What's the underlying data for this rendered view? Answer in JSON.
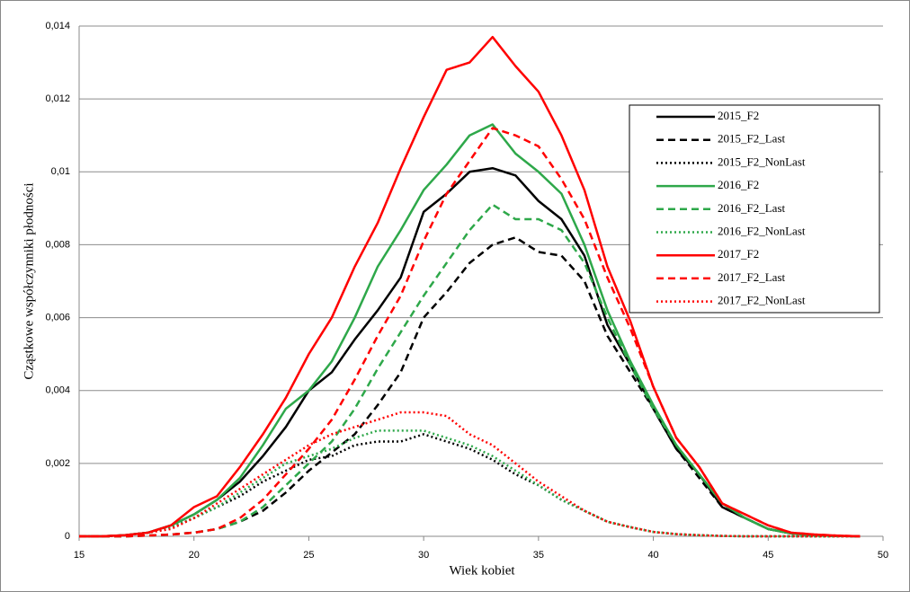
{
  "chart_data": {
    "type": "line",
    "xlabel": "Wiek kobiet",
    "ylabel": "Cząstkowe współczynniki  płodności",
    "x": [
      15,
      16,
      17,
      18,
      19,
      20,
      21,
      22,
      23,
      24,
      25,
      26,
      27,
      28,
      29,
      30,
      31,
      32,
      33,
      34,
      35,
      36,
      37,
      38,
      39,
      40,
      41,
      42,
      43,
      44,
      45,
      46,
      47,
      48,
      49
    ],
    "xlim": [
      15,
      50
    ],
    "xticks": [
      15,
      20,
      25,
      30,
      35,
      40,
      45,
      50
    ],
    "ylim": [
      0,
      0.014
    ],
    "yticks": [
      0,
      {
        "value": 0.002,
        "label": "0,002"
      },
      {
        "value": 0.004,
        "label": "0,004"
      },
      {
        "value": 0.006,
        "label": "0,006"
      },
      {
        "value": 0.008,
        "label": "0,008"
      },
      {
        "value": 0.01,
        "label": "0,01"
      },
      {
        "value": 0.012,
        "label": "0,012"
      },
      {
        "value": 0.014,
        "label": "0,014"
      }
    ],
    "grid": true,
    "legend": "upper right",
    "series": [
      {
        "name": "2015_F2",
        "color": "#000000",
        "linestyle": "solid",
        "values": [
          0,
          0,
          3e-05,
          0.0001,
          0.0003,
          0.0006,
          0.001,
          0.0015,
          0.0022,
          0.003,
          0.004,
          0.0045,
          0.0054,
          0.0062,
          0.0071,
          0.0089,
          0.0094,
          0.01,
          0.0101,
          0.0099,
          0.0092,
          0.0087,
          0.0077,
          0.0058,
          0.0047,
          0.0035,
          0.0024,
          0.0017,
          0.0008,
          0.0005,
          0.0002,
          8e-05,
          3e-05,
          1e-05,
          0
        ]
      },
      {
        "name": "2015_F2_Last",
        "color": "#000000",
        "linestyle": "dashed",
        "values": [
          0,
          0,
          0,
          2e-05,
          5e-05,
          0.0001,
          0.0002,
          0.0004,
          0.0007,
          0.0012,
          0.0018,
          0.0023,
          0.0028,
          0.0036,
          0.0045,
          0.006,
          0.0067,
          0.0075,
          0.008,
          0.0082,
          0.0078,
          0.0077,
          0.007,
          0.0055,
          0.0045,
          0.0035,
          0.0024,
          0.0016,
          0.0008,
          0.0005,
          0.0002,
          8e-05,
          3e-05,
          1e-05,
          0
        ]
      },
      {
        "name": "2015_F2_NonLast",
        "color": "#000000",
        "linestyle": "dotted",
        "values": [
          0,
          0,
          3e-05,
          0.0001,
          0.00025,
          0.0005,
          0.0008,
          0.0011,
          0.0015,
          0.0018,
          0.0021,
          0.0022,
          0.0025,
          0.0026,
          0.0026,
          0.0028,
          0.0026,
          0.0024,
          0.0021,
          0.0017,
          0.0014,
          0.001,
          0.0007,
          0.0004,
          0.00025,
          0.00012,
          6e-05,
          3e-05,
          1e-05,
          0,
          0,
          0,
          0,
          0,
          0
        ]
      },
      {
        "name": "2016_F2",
        "color": "#2ea84a",
        "linestyle": "solid",
        "values": [
          0,
          0,
          3e-05,
          0.0001,
          0.0003,
          0.0006,
          0.001,
          0.0016,
          0.0025,
          0.0035,
          0.004,
          0.0048,
          0.006,
          0.0074,
          0.0084,
          0.0095,
          0.0102,
          0.011,
          0.0113,
          0.0105,
          0.01,
          0.0094,
          0.008,
          0.0062,
          0.0048,
          0.0036,
          0.0025,
          0.0017,
          0.0009,
          0.0005,
          0.0002,
          8e-05,
          3e-05,
          1e-05,
          0
        ]
      },
      {
        "name": "2016_F2_Last",
        "color": "#2ea84a",
        "linestyle": "dashed",
        "values": [
          0,
          0,
          0,
          2e-05,
          5e-05,
          0.0001,
          0.0002,
          0.0004,
          0.0008,
          0.0014,
          0.002,
          0.0026,
          0.0035,
          0.0046,
          0.0056,
          0.0066,
          0.0075,
          0.0084,
          0.0091,
          0.0087,
          0.0087,
          0.0084,
          0.0075,
          0.006,
          0.0047,
          0.0035,
          0.0025,
          0.0017,
          0.0009,
          0.0005,
          0.0002,
          8e-05,
          3e-05,
          1e-05,
          0
        ]
      },
      {
        "name": "2016_F2_NonLast",
        "color": "#2ea84a",
        "linestyle": "dotted",
        "values": [
          0,
          0,
          3e-05,
          0.0001,
          0.00025,
          0.0005,
          0.0008,
          0.0012,
          0.0016,
          0.002,
          0.0022,
          0.0024,
          0.0027,
          0.0029,
          0.0029,
          0.0029,
          0.0027,
          0.0025,
          0.0022,
          0.0018,
          0.0014,
          0.001,
          0.0007,
          0.0004,
          0.00025,
          0.00012,
          6e-05,
          3e-05,
          1e-05,
          0,
          0,
          0,
          0,
          0,
          0
        ]
      },
      {
        "name": "2017_F2",
        "color": "#ff0000",
        "linestyle": "solid",
        "values": [
          0,
          0,
          3e-05,
          0.0001,
          0.0003,
          0.0008,
          0.0011,
          0.0019,
          0.0028,
          0.0038,
          0.005,
          0.006,
          0.0074,
          0.0086,
          0.0101,
          0.0115,
          0.0128,
          0.013,
          0.0137,
          0.0129,
          0.0122,
          0.011,
          0.0095,
          0.0074,
          0.0059,
          0.0041,
          0.0027,
          0.0019,
          0.0009,
          0.0006,
          0.0003,
          0.0001,
          5e-05,
          2e-05,
          0
        ]
      },
      {
        "name": "2017_F2_Last",
        "color": "#ff0000",
        "linestyle": "dashed",
        "values": [
          0,
          0,
          0,
          2e-05,
          5e-05,
          0.0001,
          0.0002,
          0.0005,
          0.001,
          0.0017,
          0.0024,
          0.0032,
          0.0043,
          0.0055,
          0.0066,
          0.0081,
          0.0094,
          0.0103,
          0.0112,
          0.011,
          0.0107,
          0.0098,
          0.0087,
          0.0071,
          0.0057,
          0.0041,
          0.0027,
          0.0019,
          0.0009,
          0.0006,
          0.0003,
          0.0001,
          5e-05,
          2e-05,
          0
        ]
      },
      {
        "name": "2017_F2_NonLast",
        "color": "#ff0000",
        "linestyle": "dotted",
        "values": [
          0,
          0,
          3e-05,
          0.0001,
          0.0002,
          0.0005,
          0.0009,
          0.0013,
          0.0017,
          0.0021,
          0.0025,
          0.0028,
          0.003,
          0.0032,
          0.0034,
          0.0034,
          0.0033,
          0.0028,
          0.0025,
          0.002,
          0.0015,
          0.0011,
          0.0007,
          0.0004,
          0.00025,
          0.00012,
          6e-05,
          3e-05,
          1e-05,
          0,
          0,
          0,
          0,
          0,
          0
        ]
      }
    ]
  }
}
